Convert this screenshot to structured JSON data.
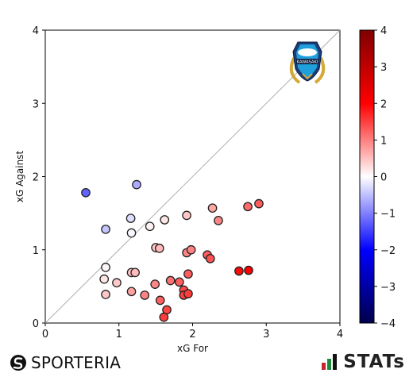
{
  "chart_data": {
    "type": "scatter",
    "title": "",
    "xlabel": "xG For",
    "ylabel": "xG Against",
    "xlim": [
      0,
      4
    ],
    "ylim": [
      0,
      4
    ],
    "xticks": [
      "0",
      "1",
      "2",
      "3",
      "4"
    ],
    "yticks": [
      "0",
      "1",
      "2",
      "3",
      "4"
    ],
    "reference_line": "y = x",
    "color_variable": "xG For − xG Against",
    "colorbar": {
      "range": [
        -4,
        4
      ],
      "ticks": [
        "4",
        "3",
        "2",
        "1",
        "0",
        "−1",
        "−2",
        "−3",
        "−4"
      ],
      "colormap": "seismic",
      "low_color": "#00004c",
      "mid_color": "#ffffff",
      "high_color": "#800000"
    },
    "points": [
      {
        "x": 0.55,
        "y": 1.78
      },
      {
        "x": 1.24,
        "y": 1.89
      },
      {
        "x": 1.16,
        "y": 1.43
      },
      {
        "x": 0.82,
        "y": 1.28
      },
      {
        "x": 1.17,
        "y": 1.23
      },
      {
        "x": 1.42,
        "y": 1.32
      },
      {
        "x": 1.62,
        "y": 1.41
      },
      {
        "x": 1.92,
        "y": 1.47
      },
      {
        "x": 2.27,
        "y": 1.57
      },
      {
        "x": 2.35,
        "y": 1.4
      },
      {
        "x": 2.75,
        "y": 1.59
      },
      {
        "x": 2.9,
        "y": 1.63
      },
      {
        "x": 0.82,
        "y": 0.76
      },
      {
        "x": 0.8,
        "y": 0.6
      },
      {
        "x": 0.97,
        "y": 0.55
      },
      {
        "x": 1.17,
        "y": 0.69
      },
      {
        "x": 1.22,
        "y": 0.69
      },
      {
        "x": 1.5,
        "y": 1.03
      },
      {
        "x": 1.55,
        "y": 1.02
      },
      {
        "x": 1.92,
        "y": 0.96
      },
      {
        "x": 1.98,
        "y": 1.0
      },
      {
        "x": 2.2,
        "y": 0.93
      },
      {
        "x": 2.24,
        "y": 0.88
      },
      {
        "x": 0.82,
        "y": 0.39
      },
      {
        "x": 1.17,
        "y": 0.43
      },
      {
        "x": 1.35,
        "y": 0.38
      },
      {
        "x": 1.49,
        "y": 0.53
      },
      {
        "x": 1.56,
        "y": 0.31
      },
      {
        "x": 1.7,
        "y": 0.58
      },
      {
        "x": 1.82,
        "y": 0.56
      },
      {
        "x": 1.88,
        "y": 0.45
      },
      {
        "x": 1.88,
        "y": 0.38
      },
      {
        "x": 1.94,
        "y": 0.4
      },
      {
        "x": 1.94,
        "y": 0.67
      },
      {
        "x": 1.65,
        "y": 0.18
      },
      {
        "x": 1.61,
        "y": 0.08
      },
      {
        "x": 2.63,
        "y": 0.71
      },
      {
        "x": 2.76,
        "y": 0.72
      }
    ],
    "legend": "colorbar-right"
  },
  "logo": {
    "name": "kawasaki-frontale-crest",
    "text": "KAWASAKI",
    "primary_color": "#1fa0dc",
    "accent_color": "#d4a93a"
  },
  "footer": {
    "left_brand": {
      "text": "SPORTERIA",
      "icon": "sporteria-s-icon"
    },
    "right_brand": {
      "text": "STATs",
      "icon": "stats-bars-icon",
      "colors": [
        "#c4262e",
        "#1e8a3a"
      ]
    }
  }
}
